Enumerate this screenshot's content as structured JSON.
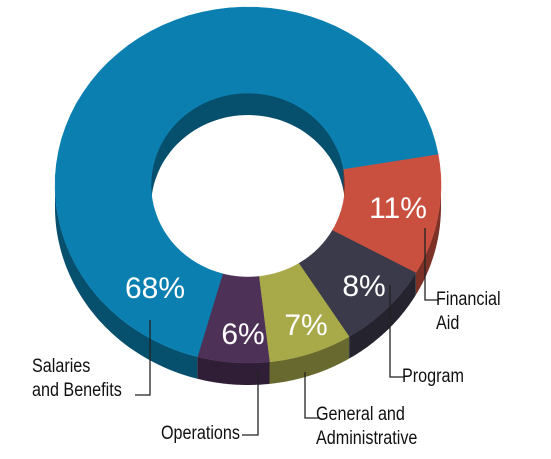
{
  "chart_data": {
    "type": "donut",
    "categories": [
      "Financial\nAid",
      "Program",
      "General and\nAdministrative",
      "Operations",
      "Salaries\nand Benefits"
    ],
    "values": [
      11,
      8,
      7,
      6,
      68
    ],
    "value_labels": [
      "11%",
      "8%",
      "7%",
      "6%",
      "68%"
    ],
    "colors": [
      "#c9503f",
      "#3b3a4a",
      "#a8aa4a",
      "#4e3157",
      "#0a7fb0"
    ]
  }
}
